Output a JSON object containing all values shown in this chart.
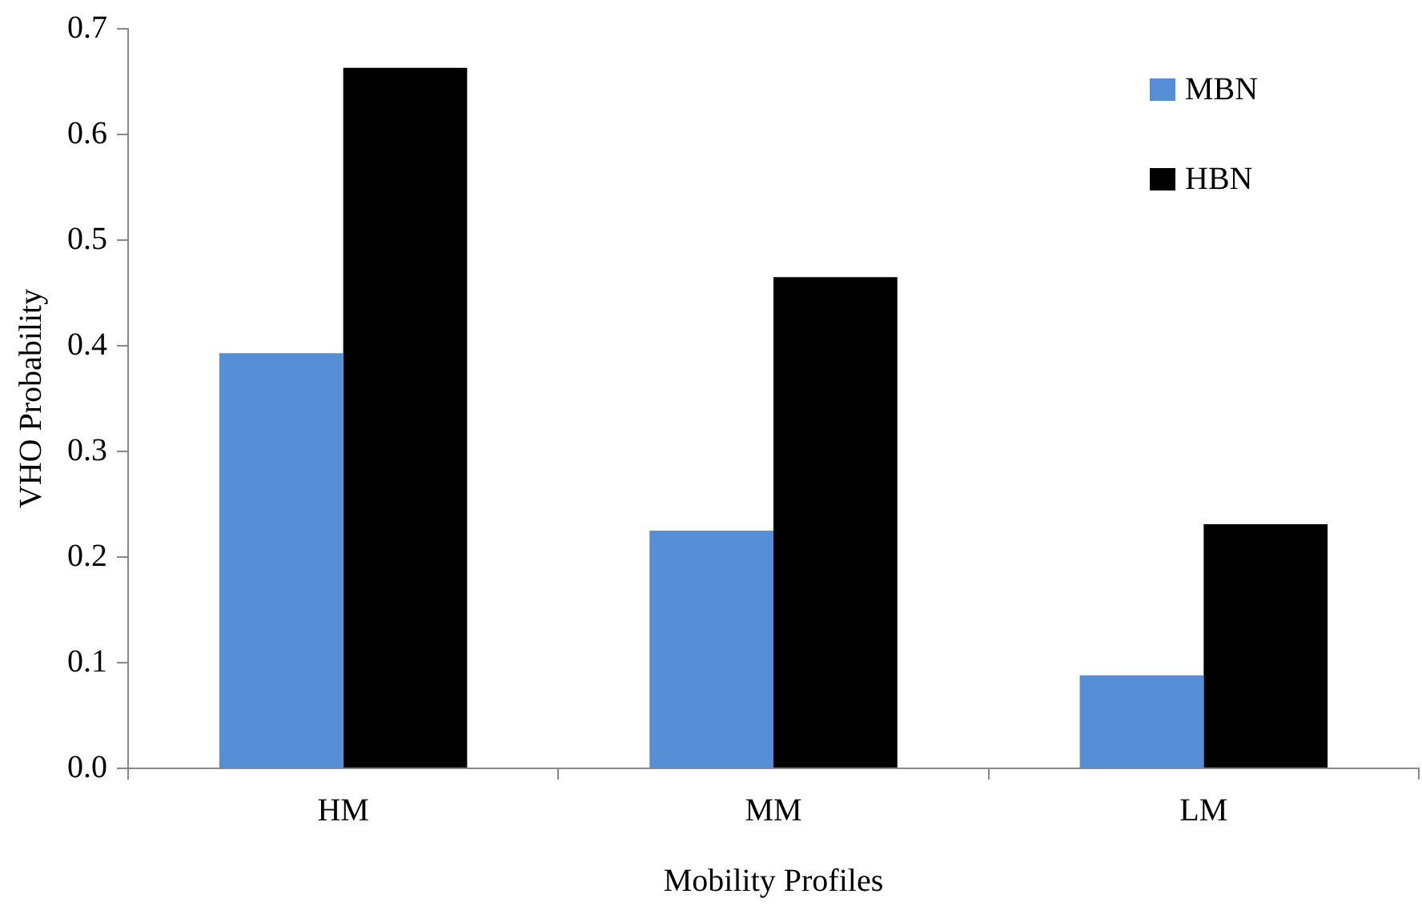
{
  "chart_data": {
    "type": "bar",
    "xlabel": "Mobility Profiles",
    "ylabel": "VHO Probability",
    "categories": [
      "HM",
      "MM",
      "LM"
    ],
    "series": [
      {
        "name": "MBN",
        "color": "#558ed5",
        "values": [
          0.393,
          0.225,
          0.088
        ]
      },
      {
        "name": "HBN",
        "color": "#000000",
        "values": [
          0.663,
          0.465,
          0.231
        ]
      }
    ],
    "ylim": [
      0,
      0.7
    ],
    "yticks": [
      {
        "value": 0,
        "label": "0.0"
      },
      {
        "value": 0.1,
        "label": "0.1"
      },
      {
        "value": 0.2,
        "label": "0.2"
      },
      {
        "value": 0.3,
        "label": "0.3"
      },
      {
        "value": 0.4,
        "label": "0.4"
      },
      {
        "value": 0.5,
        "label": "0.5"
      },
      {
        "value": 0.6,
        "label": "0.6"
      },
      {
        "value": 0.7,
        "label": "0.7"
      }
    ],
    "grid": false,
    "legend": "top right"
  }
}
